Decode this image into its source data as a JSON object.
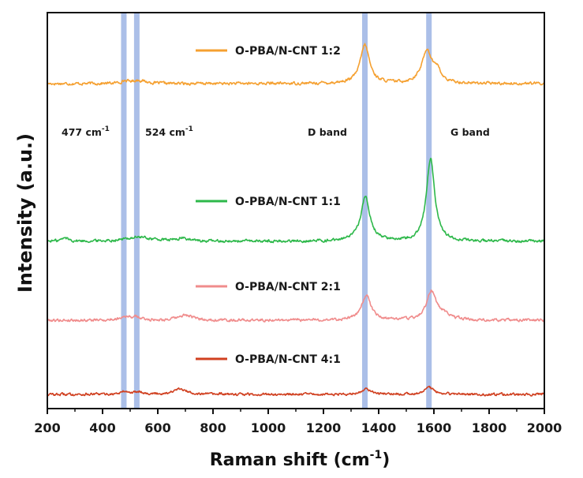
{
  "chart_data": {
    "type": "line",
    "xlabel": "Raman shift (cm",
    "xlabel_sup": "-1",
    "xlabel_close": ")",
    "ylabel": "Intensity (a.u.)",
    "xlim": [
      200,
      2000
    ],
    "xticks": [
      200,
      400,
      600,
      800,
      1000,
      1200,
      1400,
      1600,
      1800,
      2000
    ],
    "xtick_labels": [
      "200",
      "400",
      "600",
      "800",
      "1000",
      "1200",
      "1400",
      "1600",
      "1800",
      "2000"
    ],
    "y_ticks_shown": false,
    "grid": false,
    "highlight_bands": [
      {
        "x": 477,
        "label": "477 cm",
        "label_sup": "-1"
      },
      {
        "x": 524,
        "label": "524 cm",
        "label_sup": "-1"
      },
      {
        "x": 1350,
        "label": "D band",
        "label_sup": ""
      },
      {
        "x": 1582,
        "label": "G band",
        "label_sup": ""
      }
    ],
    "band_color": "#8fa9e0",
    "series": [
      {
        "name": "O-PBA/N-CNT 1:2",
        "color": "#f5a030",
        "baseline": 0.0,
        "noise": 0.9,
        "peaks": [
          [
            1350,
            14,
            20
          ],
          [
            1575,
            12,
            22
          ],
          [
            1612,
            4,
            14
          ],
          [
            530,
            1.2,
            30
          ],
          [
            480,
            0.8,
            15
          ]
        ]
      },
      {
        "name": "O-PBA/N-CNT 1:1",
        "color": "#2db84a",
        "baseline": 0.0,
        "noise": 0.9,
        "peaks": [
          [
            1352,
            16,
            20
          ],
          [
            1588,
            30,
            18
          ],
          [
            265,
            1.2,
            15
          ],
          [
            530,
            1.5,
            60
          ],
          [
            690,
            1.0,
            25
          ]
        ]
      },
      {
        "name": "O-PBA/N-CNT 2:1",
        "color": "#f08c8c",
        "baseline": 0.0,
        "noise": 0.9,
        "peaks": [
          [
            1355,
            9,
            20
          ],
          [
            1590,
            10,
            20
          ],
          [
            480,
            1.3,
            20
          ],
          [
            520,
            1.0,
            20
          ],
          [
            700,
            1.8,
            30
          ],
          [
            1630,
            2,
            30
          ]
        ]
      },
      {
        "name": "O-PBA/N-CNT 4:1",
        "color": "#d04020",
        "baseline": 0.0,
        "noise": 0.8,
        "peaks": [
          [
            1355,
            2,
            20
          ],
          [
            1582,
            2.5,
            20
          ],
          [
            480,
            1,
            15
          ],
          [
            530,
            1,
            20
          ],
          [
            680,
            1.8,
            30
          ]
        ]
      }
    ]
  }
}
